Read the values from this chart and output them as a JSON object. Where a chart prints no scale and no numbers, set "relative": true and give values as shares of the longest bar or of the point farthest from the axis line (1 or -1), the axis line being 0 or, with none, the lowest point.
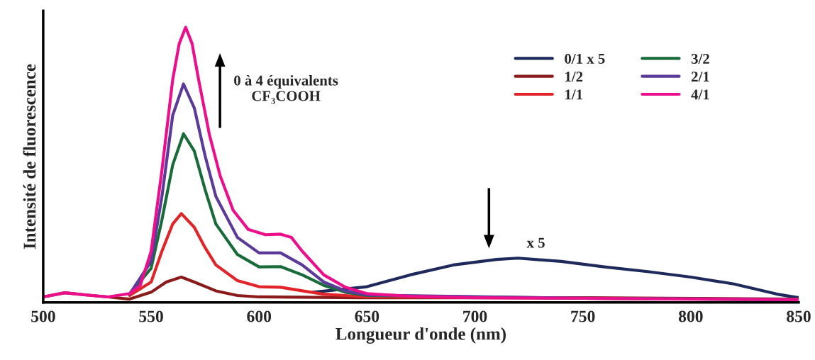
{
  "chart_data": {
    "type": "line",
    "relative": true,
    "xlabel": "Longueur d'onde (nm)",
    "ylabel": "Intensité de fluorescence",
    "xlim": [
      500,
      850
    ],
    "xticks": [
      500,
      550,
      600,
      650,
      700,
      750,
      800,
      850
    ],
    "grid": false,
    "legend": "top right",
    "marker": "none",
    "line_style": "solid",
    "annotations": [
      "0 à 4 équivalents\nCF₃COOH",
      "x 5"
    ],
    "series": [
      {
        "name": "0/1 x 5",
        "color": "#1f2a5c",
        "x": [
          625,
          650,
          670,
          690,
          710,
          720,
          740,
          760,
          780,
          800,
          820,
          840,
          850
        ],
        "values": [
          0.037,
          0.057,
          0.1,
          0.136,
          0.156,
          0.161,
          0.149,
          0.129,
          0.112,
          0.092,
          0.067,
          0.03,
          0.017
        ]
      },
      {
        "name": "1/2",
        "color": "#8b1a1a",
        "x": [
          500,
          510,
          520,
          530,
          540,
          550,
          557,
          564,
          570,
          580,
          590,
          600,
          650,
          750,
          850
        ],
        "values": [
          0.02,
          0.035,
          0.027,
          0.02,
          0.012,
          0.037,
          0.074,
          0.092,
          0.074,
          0.042,
          0.025,
          0.02,
          0.017,
          0.017,
          0.012
        ]
      },
      {
        "name": "1/1",
        "color": "#e0242a",
        "x": [
          540,
          550,
          555,
          560,
          564,
          570,
          575,
          580,
          590,
          600,
          610,
          620,
          630,
          650,
          750,
          850
        ],
        "values": [
          0.025,
          0.074,
          0.186,
          0.285,
          0.323,
          0.273,
          0.199,
          0.136,
          0.079,
          0.057,
          0.055,
          0.042,
          0.03,
          0.02,
          0.015,
          0.01
        ]
      },
      {
        "name": "3/2",
        "color": "#1a6b3a",
        "x": [
          540,
          550,
          555,
          560,
          565,
          570,
          575,
          580,
          590,
          600,
          610,
          620,
          630,
          640,
          650,
          750,
          850
        ],
        "values": [
          0.03,
          0.124,
          0.3,
          0.5,
          0.613,
          0.55,
          0.41,
          0.285,
          0.174,
          0.129,
          0.13,
          0.1,
          0.062,
          0.037,
          0.025,
          0.015,
          0.01
        ]
      },
      {
        "name": "2/1",
        "color": "#5b3a9a",
        "x": [
          540,
          550,
          555,
          560,
          565,
          570,
          575,
          580,
          590,
          600,
          610,
          620,
          630,
          640,
          650,
          750,
          850
        ],
        "values": [
          0.03,
          0.149,
          0.385,
          0.68,
          0.794,
          0.707,
          0.533,
          0.385,
          0.236,
          0.18,
          0.18,
          0.136,
          0.074,
          0.042,
          0.027,
          0.015,
          0.01
        ]
      },
      {
        "name": "4/1",
        "color": "#ec0f8c",
        "x": [
          500,
          510,
          520,
          530,
          540,
          545,
          550,
          555,
          560,
          563,
          566,
          569,
          572,
          577,
          582,
          588,
          595,
          603,
          610,
          615,
          620,
          630,
          640,
          650,
          670,
          700,
          750,
          800,
          850
        ],
        "values": [
          0.02,
          0.035,
          0.027,
          0.02,
          0.032,
          0.062,
          0.186,
          0.48,
          0.81,
          0.94,
          1.0,
          0.94,
          0.81,
          0.61,
          0.46,
          0.335,
          0.265,
          0.246,
          0.248,
          0.236,
          0.186,
          0.1,
          0.055,
          0.032,
          0.022,
          0.017,
          0.015,
          0.012,
          0.01
        ]
      }
    ]
  }
}
